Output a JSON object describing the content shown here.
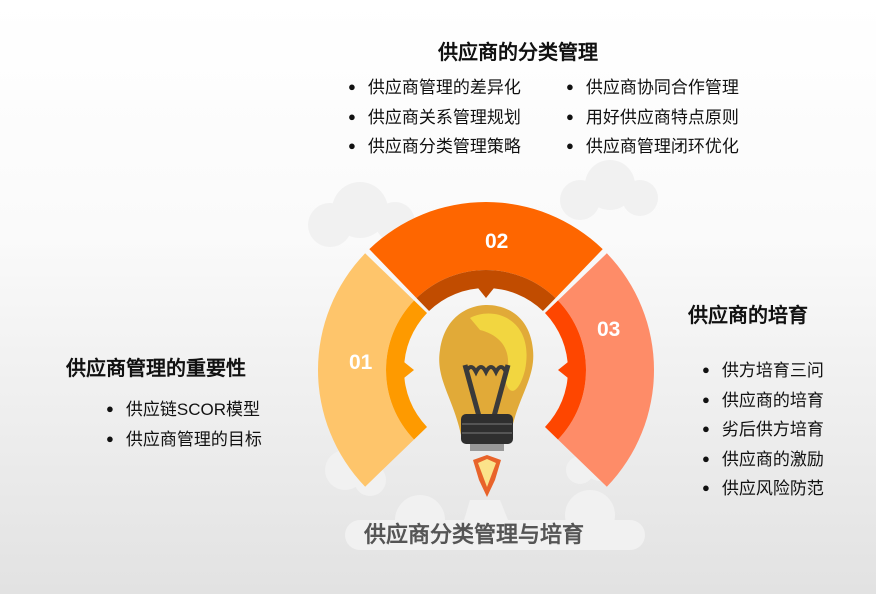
{
  "main_title": "供应商分类管理与培育",
  "sections": [
    {
      "num": "01",
      "title": "供应商管理的重要性",
      "items": [
        "供应链SCOR模型",
        "供应商管理的目标"
      ],
      "color": "#fec56b",
      "inner": "#fe9a00"
    },
    {
      "num": "02",
      "title": "供应商的分类管理",
      "items_left": [
        "供应商管理的差异化",
        "供应商关系管理规划",
        "供应商分类管理策略"
      ],
      "items_right": [
        "供应商协同合作管理",
        "用好供应商特点原则",
        "供应商管理闭环优化"
      ],
      "color": "#fe6600",
      "inner": "#c14c00"
    },
    {
      "num": "03",
      "title": "供应商的培育",
      "items": [
        "供方培育三问",
        "供应商的培育",
        "劣后供方培育",
        "供应商的激励",
        "供应风险防范"
      ],
      "color": "#fe8c68",
      "inner": "#fe4600"
    }
  ],
  "icon": "lightbulb-rocket-icon"
}
